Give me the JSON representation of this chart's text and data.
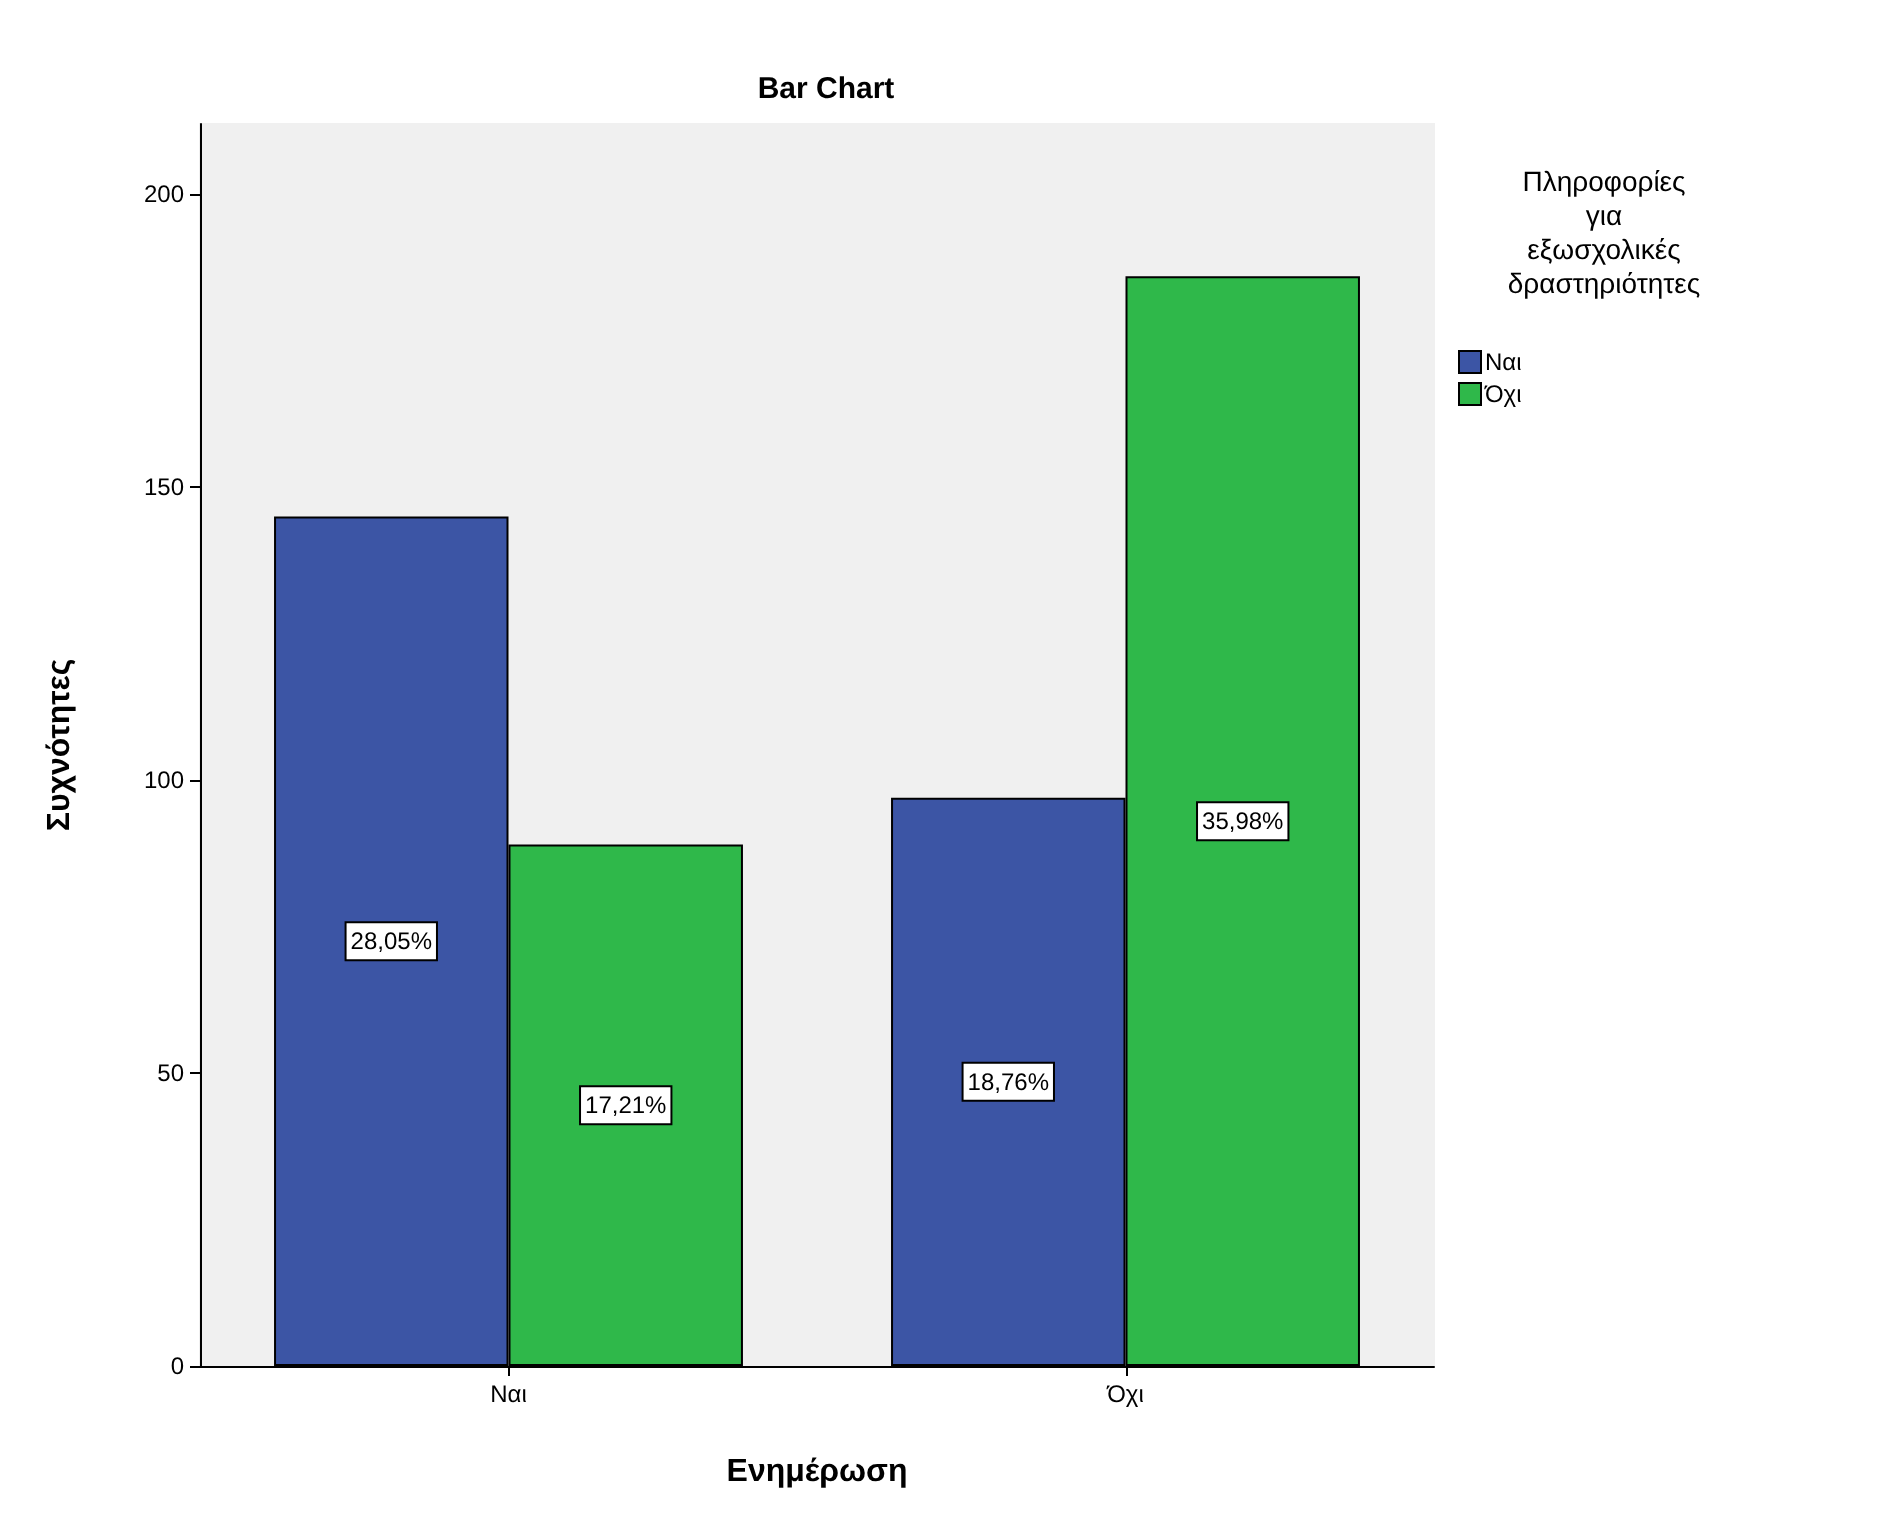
{
  "chart_data": {
    "type": "bar",
    "title": "Bar Chart",
    "xlabel": "Ενημέρωση",
    "ylabel": "Συχνότητες",
    "legend_title": "Πληροφορίες για εξωσχολικές δραστηριότητες",
    "categories": [
      "Ναι",
      "Όχι"
    ],
    "series": [
      {
        "name": "Ναι",
        "color": "#3c55a5",
        "values": [
          145,
          97
        ]
      },
      {
        "name": "Όχι",
        "color": "#2fb84a",
        "values": [
          89,
          186
        ]
      }
    ],
    "annotations": [
      "28,05%",
      "18,76%",
      "17,21%",
      "35,98%"
    ],
    "ylim": [
      0,
      212
    ],
    "yticks": [
      0,
      50,
      100,
      150,
      200
    ],
    "grid": false,
    "legend": "top right"
  }
}
